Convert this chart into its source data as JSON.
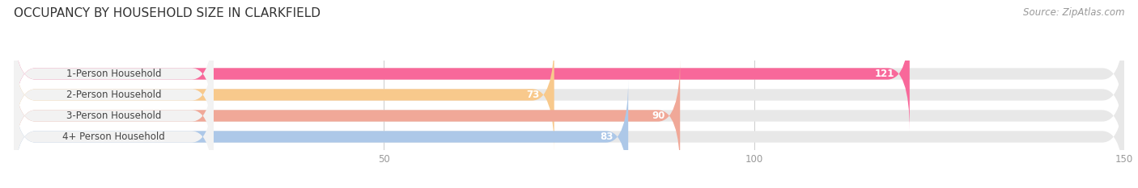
{
  "title": "OCCUPANCY BY HOUSEHOLD SIZE IN CLARKFIELD",
  "source": "Source: ZipAtlas.com",
  "categories": [
    "1-Person Household",
    "2-Person Household",
    "3-Person Household",
    "4+ Person Household"
  ],
  "values": [
    121,
    73,
    90,
    83
  ],
  "bar_colors": [
    "#f8689a",
    "#f8c98c",
    "#f0a898",
    "#adc8e8"
  ],
  "xlim": [
    0,
    150
  ],
  "xticks": [
    50,
    100,
    150
  ],
  "background_color": "#ffffff",
  "title_fontsize": 11,
  "source_fontsize": 8.5,
  "label_fontsize": 8.5,
  "value_fontsize": 8.5,
  "bar_bg_color": "#e8e8e8",
  "label_bg_color": "#f2f2f2",
  "grid_color": "#cccccc",
  "value_label_color_inside": "#ffffff",
  "value_label_color_outside": "#666666",
  "category_label_color": "#444444"
}
